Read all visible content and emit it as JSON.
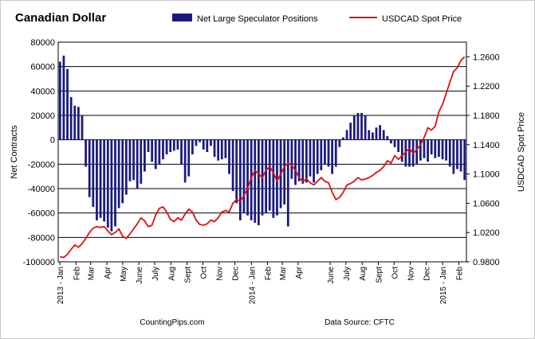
{
  "chart_data": {
    "type": "bar+line",
    "title": "Canadian Dollar",
    "legend": [
      "Net Large Speculator Positions",
      "USDCAD Spot Price"
    ],
    "legend_position": "top",
    "colors": {
      "bars": "#1a1a80",
      "line": "#dd1111",
      "grid": "#000000"
    },
    "left_axis": {
      "label": "Net Contracts",
      "min": -100000,
      "max": 80000,
      "ticks": [
        "80000",
        "60000",
        "40000",
        "20000",
        "0",
        "-20000",
        "-40000",
        "-60000",
        "-80000",
        "-100000"
      ]
    },
    "right_axis": {
      "label": "USDCAD Spot Price",
      "min": 0.98,
      "max": 1.28,
      "ticks": [
        "1.2600",
        "1.2200",
        "1.1800",
        "1.1400",
        "1.1000",
        "1.0600",
        "1.0200",
        "0.9800"
      ]
    },
    "gridlines": "horizontal",
    "x_labels": [
      {
        "text": "2013 - Jan",
        "week": 0
      },
      {
        "text": "Feb",
        "week": 4.4
      },
      {
        "text": "Mar",
        "week": 8.4
      },
      {
        "text": "Apr",
        "week": 12.8
      },
      {
        "text": "May",
        "week": 17.1
      },
      {
        "text": "June",
        "week": 21.5
      },
      {
        "text": "July",
        "week": 25.8
      },
      {
        "text": "Aug",
        "week": 30.2
      },
      {
        "text": "Sept",
        "week": 34.6
      },
      {
        "text": "Oct",
        "week": 38.9
      },
      {
        "text": "Nov",
        "week": 43.3
      },
      {
        "text": "Dec",
        "week": 47.6
      },
      {
        "text": "2014 - Jan",
        "week": 52.1
      },
      {
        "text": "Feb",
        "week": 56.5
      },
      {
        "text": "Mar",
        "week": 60.5
      },
      {
        "text": "Apr",
        "week": 64.8
      },
      {
        "text": "June",
        "week": 73.5
      },
      {
        "text": "July",
        "week": 77.8
      },
      {
        "text": "Aug",
        "week": 82.2
      },
      {
        "text": "Sept",
        "week": 86.6
      },
      {
        "text": "Oct",
        "week": 90.9
      },
      {
        "text": "Nov",
        "week": 95.3
      },
      {
        "text": "Dec",
        "week": 99.6
      },
      {
        "text": "2015 - Jan",
        "week": 104.1
      },
      {
        "text": "Feb",
        "week": 108.5
      }
    ],
    "net_positions": [
      64000,
      69000,
      58000,
      35000,
      28000,
      27000,
      20000,
      -22000,
      -47000,
      -55000,
      -66000,
      -64000,
      -67000,
      -72000,
      -75000,
      -71000,
      -56000,
      -52000,
      -45000,
      -34000,
      -33000,
      -40000,
      -36000,
      -26000,
      -10000,
      -18000,
      -24000,
      -20000,
      -16000,
      -12000,
      -10000,
      -9000,
      -8000,
      -20000,
      -35000,
      -30000,
      -12000,
      -5000,
      -2000,
      -8000,
      -10000,
      -5000,
      -14000,
      -17000,
      -16000,
      -15000,
      -28000,
      -42000,
      -52000,
      -66000,
      -60000,
      -62000,
      -66000,
      -68000,
      -70000,
      -62000,
      -60000,
      -58000,
      -64000,
      -62000,
      -56000,
      -53000,
      -71000,
      -32000,
      -37000,
      -34000,
      -36000,
      -35000,
      -30000,
      -35000,
      -28000,
      -25000,
      -20000,
      -22000,
      -28000,
      -22000,
      -6000,
      2000,
      8000,
      14000,
      20000,
      22000,
      22000,
      20000,
      8000,
      6000,
      10000,
      12000,
      8000,
      3000,
      -3000,
      -6000,
      -10000,
      -18000,
      -22000,
      -22000,
      -22000,
      -20000,
      -17000,
      -15000,
      -18000,
      -12000,
      -15000,
      -14000,
      -16000,
      -17000,
      -22000,
      -28000,
      -24000,
      -26000,
      -33000
    ],
    "spot_price": [
      0.987,
      0.986,
      0.99,
      0.997,
      1.003,
      1.0,
      1.005,
      1.012,
      1.02,
      1.026,
      1.028,
      1.027,
      1.028,
      1.022,
      1.017,
      1.02,
      1.025,
      1.015,
      1.012,
      1.018,
      1.025,
      1.032,
      1.04,
      1.036,
      1.028,
      1.03,
      1.044,
      1.053,
      1.055,
      1.048,
      1.038,
      1.035,
      1.04,
      1.037,
      1.045,
      1.052,
      1.048,
      1.037,
      1.031,
      1.03,
      1.032,
      1.037,
      1.035,
      1.04,
      1.048,
      1.05,
      1.048,
      1.06,
      1.065,
      1.063,
      1.07,
      1.08,
      1.095,
      1.105,
      1.1,
      1.095,
      1.105,
      1.11,
      1.102,
      1.09,
      1.1,
      1.11,
      1.115,
      1.112,
      1.105,
      1.095,
      1.09,
      1.093,
      1.088,
      1.085,
      1.09,
      1.095,
      1.09,
      1.088,
      1.075,
      1.065,
      1.068,
      1.075,
      1.085,
      1.087,
      1.09,
      1.095,
      1.092,
      1.093,
      1.095,
      1.098,
      1.102,
      1.105,
      1.11,
      1.118,
      1.115,
      1.125,
      1.12,
      1.125,
      1.13,
      1.135,
      1.128,
      1.133,
      1.14,
      1.15,
      1.163,
      1.16,
      1.165,
      1.185,
      1.195,
      1.21,
      1.225,
      1.24,
      1.245,
      1.255,
      1.26
    ]
  },
  "footer": {
    "left": "CountingPips.com",
    "right": "Data Source: CFTC"
  }
}
